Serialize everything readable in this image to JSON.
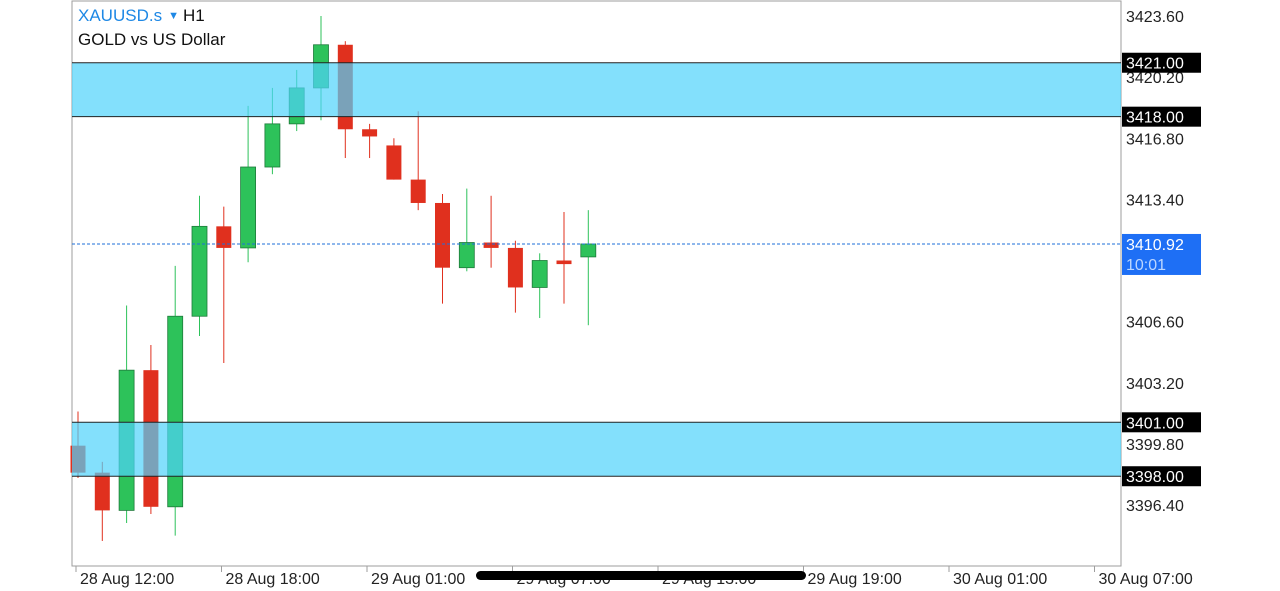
{
  "header": {
    "symbol": "XAUUSD.s",
    "timeframe": "H1",
    "description": "GOLD vs US Dollar"
  },
  "colors": {
    "bull": "#2dc25a",
    "bear": "#e0301e",
    "zone": "#4fd3fb",
    "zone_border": "#222222",
    "bid_line": "#1e6fd9",
    "bid_label_bg": "#1e6ff5",
    "axis_text": "#222222",
    "frame": "#9e9e9e"
  },
  "chart_data": {
    "type": "candlestick",
    "timeframe": "H1",
    "ylim": [
      3393.5,
      3424.5
    ],
    "price_ticks": [
      "3423.60",
      "3420.20",
      "3416.80",
      "3413.40",
      "3406.60",
      "3403.20",
      "3399.80",
      "3396.40"
    ],
    "time_labels": [
      "28 Aug 12:00",
      "28 Aug 18:00",
      "29 Aug 01:00",
      "29 Aug 07:00",
      "29 Aug 13:00",
      "29 Aug 19:00",
      "30 Aug 01:00",
      "30 Aug 07:00"
    ],
    "zones": [
      {
        "top": 3421.0,
        "bottom": 3418.0,
        "top_label": "3421.00",
        "bottom_label": "3418.00"
      },
      {
        "top": 3401.0,
        "bottom": 3398.0,
        "top_label": "3401.00",
        "bottom_label": "3398.00"
      }
    ],
    "current_price": 3410.92,
    "current_price_label": "3410.92",
    "countdown": "10:01",
    "candles": [
      {
        "o": 3399.7,
        "h": 3401.6,
        "l": 3397.9,
        "c": 3398.2
      },
      {
        "o": 3398.2,
        "h": 3398.8,
        "l": 3394.4,
        "c": 3396.1
      },
      {
        "o": 3396.1,
        "h": 3407.5,
        "l": 3395.4,
        "c": 3403.9
      },
      {
        "o": 3403.9,
        "h": 3405.3,
        "l": 3395.9,
        "c": 3396.3
      },
      {
        "o": 3396.3,
        "h": 3409.7,
        "l": 3394.7,
        "c": 3406.9
      },
      {
        "o": 3406.9,
        "h": 3413.6,
        "l": 3405.8,
        "c": 3411.9
      },
      {
        "o": 3411.9,
        "h": 3413.0,
        "l": 3404.3,
        "c": 3410.7
      },
      {
        "o": 3410.7,
        "h": 3418.6,
        "l": 3409.9,
        "c": 3415.2
      },
      {
        "o": 3415.2,
        "h": 3419.6,
        "l": 3414.8,
        "c": 3417.6
      },
      {
        "o": 3417.6,
        "h": 3420.6,
        "l": 3417.2,
        "c": 3419.6
      },
      {
        "o": 3419.6,
        "h": 3423.6,
        "l": 3417.8,
        "c": 3422.0
      },
      {
        "o": 3422.0,
        "h": 3422.2,
        "l": 3415.7,
        "c": 3417.3
      },
      {
        "o": 3417.3,
        "h": 3417.6,
        "l": 3415.7,
        "c": 3416.9
      },
      {
        "o": 3416.4,
        "h": 3416.8,
        "l": 3414.5,
        "c": 3414.5
      },
      {
        "o": 3414.5,
        "h": 3418.3,
        "l": 3412.8,
        "c": 3413.2
      },
      {
        "o": 3413.2,
        "h": 3413.7,
        "l": 3407.6,
        "c": 3409.6
      },
      {
        "o": 3409.6,
        "h": 3414.0,
        "l": 3409.4,
        "c": 3411.0
      },
      {
        "o": 3411.0,
        "h": 3413.6,
        "l": 3409.6,
        "c": 3410.7
      },
      {
        "o": 3410.7,
        "h": 3411.1,
        "l": 3407.1,
        "c": 3408.5
      },
      {
        "o": 3408.5,
        "h": 3410.4,
        "l": 3406.8,
        "c": 3410.0
      },
      {
        "o": 3410.0,
        "h": 3412.7,
        "l": 3407.6,
        "c": 3409.8
      },
      {
        "o": 3410.2,
        "h": 3412.8,
        "l": 3406.4,
        "c": 3410.92
      }
    ]
  }
}
